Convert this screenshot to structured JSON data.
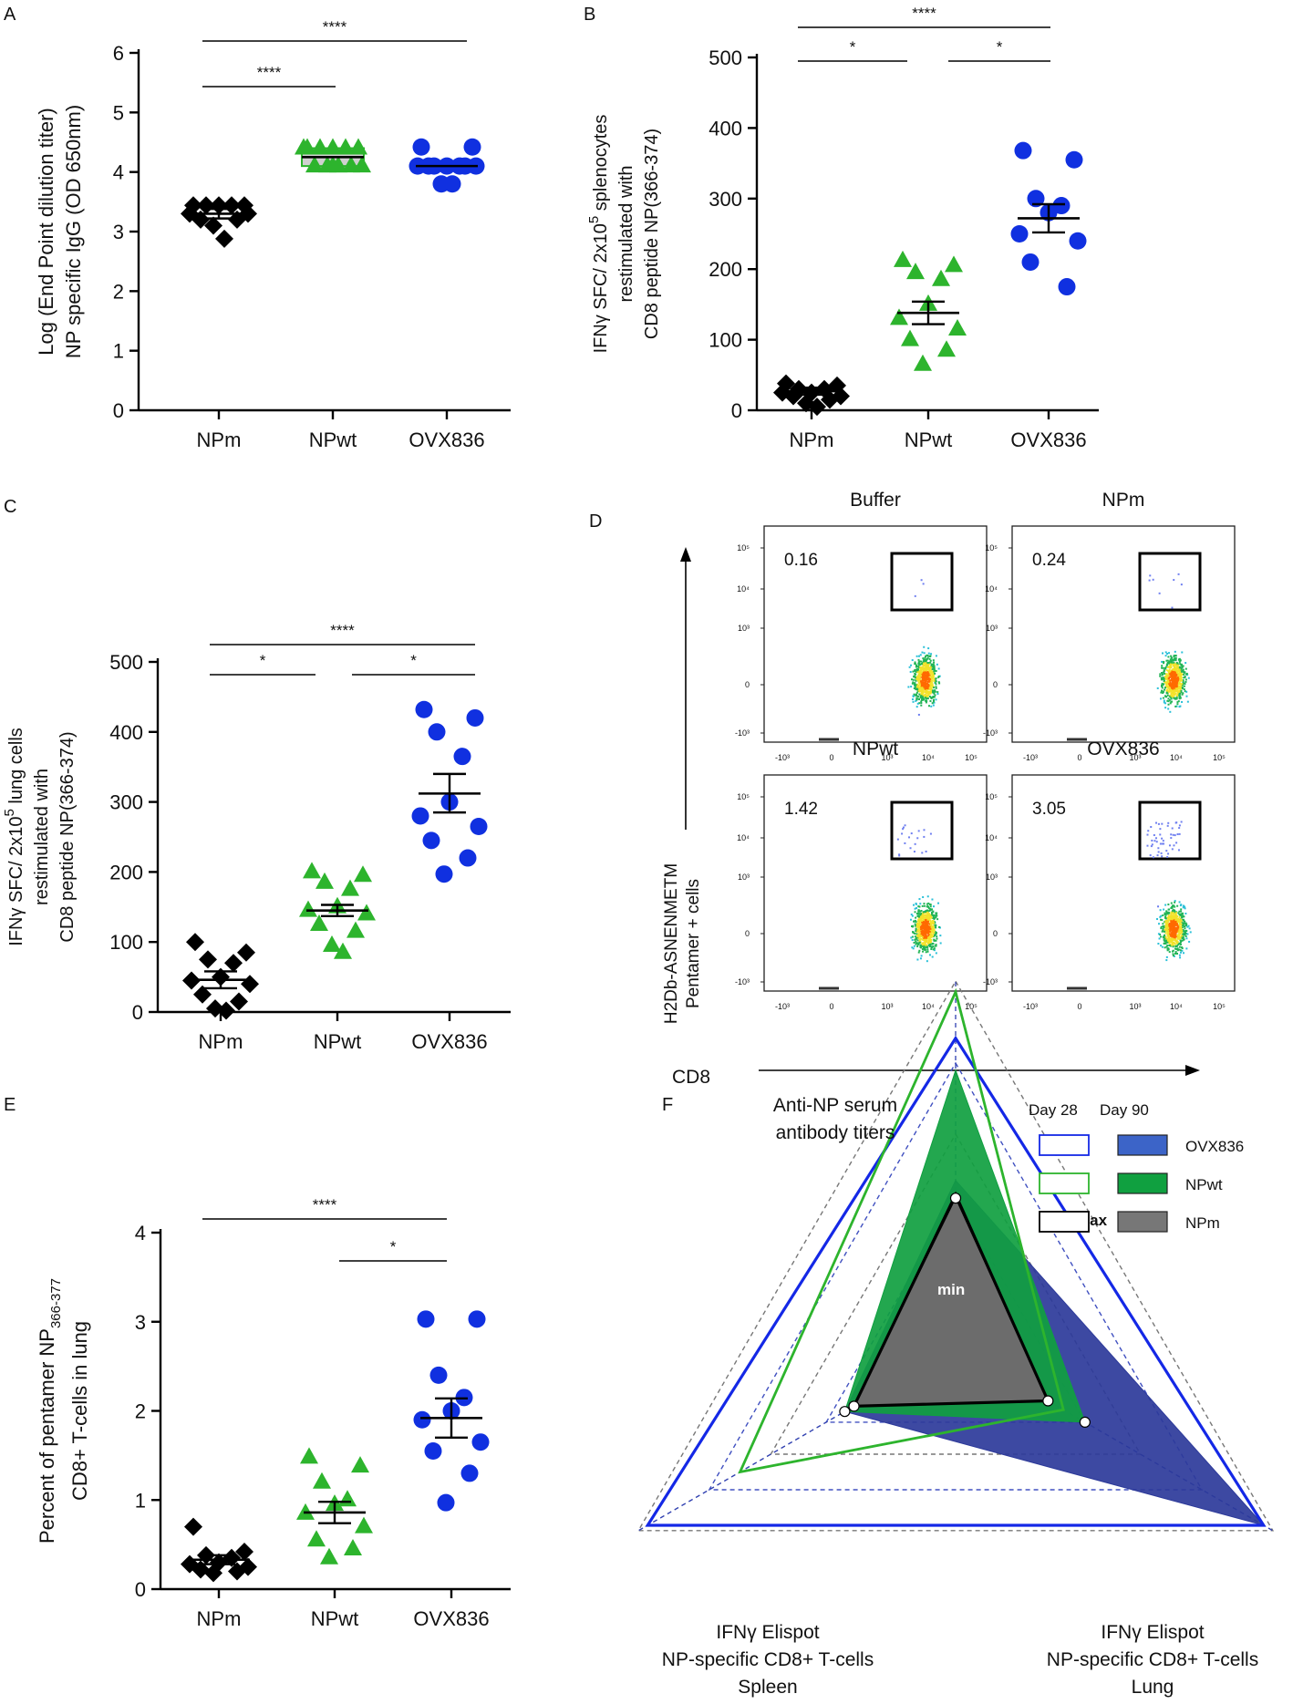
{
  "panels": {
    "A": {
      "letter": "A"
    },
    "B": {
      "letter": "B"
    },
    "C": {
      "letter": "C"
    },
    "D": {
      "letter": "D"
    },
    "E": {
      "letter": "E"
    },
    "F": {
      "letter": "F"
    }
  },
  "colors": {
    "NPm": "#000000",
    "NPwt": "#2db42d",
    "OVX836": "#1030e0",
    "npwt_box_fill": "#d0d0d0"
  },
  "chart_data": [
    {
      "id": "A",
      "type": "scatter",
      "categories": [
        "NPm",
        "NPwt",
        "OVX836"
      ],
      "ylim": [
        0,
        6
      ],
      "yticks": [
        "0",
        "1",
        "2",
        "3",
        "4",
        "5",
        "6"
      ],
      "ylabel": [
        "Log (End Point dilution titer)",
        "NP specific IgG (OD 650nm)"
      ],
      "series": [
        {
          "name": "NPm",
          "points": [
            3.44,
            3.44,
            3.44,
            3.44,
            3.44,
            3.3,
            3.3,
            3.2,
            3.2,
            3.1,
            2.88
          ],
          "mean": 3.3,
          "sem_low": 3.22,
          "sem_high": 3.38
        },
        {
          "name": "NPwt",
          "points": [
            4.4,
            4.4,
            4.4,
            4.4,
            4.4,
            4.4,
            4.1,
            4.1,
            4.1,
            4.1,
            4.1,
            4.1
          ],
          "mean": 4.25,
          "box_low": 4.1,
          "box_high": 4.4
        },
        {
          "name": "OVX836",
          "points": [
            4.42,
            4.42,
            4.1,
            4.1,
            4.1,
            4.1,
            4.1,
            4.1,
            4.1,
            3.8,
            3.8
          ],
          "mean": 4.1
        }
      ],
      "brackets": [
        {
          "from": 0,
          "to": 2,
          "label": "****"
        },
        {
          "from": 0,
          "to": 1,
          "label": "****"
        }
      ]
    },
    {
      "id": "B",
      "type": "scatter",
      "categories": [
        "NPm",
        "NPwt",
        "OVX836"
      ],
      "ylim": [
        0,
        500
      ],
      "yticks": [
        "0",
        "100",
        "200",
        "300",
        "400",
        "500"
      ],
      "ylabel": [
        "IFNγ SFC/ 2x10",
        "5",
        " splenocytes",
        "restimulated with",
        "CD8 peptide NP(366-374)"
      ],
      "series": [
        {
          "name": "NPm",
          "points": [
            38,
            35,
            30,
            30,
            25,
            25,
            20,
            20,
            15,
            10,
            5
          ],
          "mean": 27,
          "sem_low": 22,
          "sem_high": 32
        },
        {
          "name": "NPwt",
          "points": [
            212,
            205,
            195,
            185,
            150,
            130,
            115,
            100,
            85,
            65
          ],
          "mean": 138,
          "sem_low": 122,
          "sem_high": 154
        },
        {
          "name": "OVX836",
          "points": [
            368,
            355,
            300,
            290,
            280,
            250,
            240,
            210,
            175
          ],
          "mean": 272,
          "sem_low": 252,
          "sem_high": 292
        }
      ],
      "brackets": [
        {
          "from": 0,
          "to": 2,
          "label": "****"
        },
        {
          "from": 0,
          "to": 1,
          "label": "*"
        },
        {
          "from": 1,
          "to": 2,
          "label": "*"
        }
      ]
    },
    {
      "id": "C",
      "type": "scatter",
      "categories": [
        "NPm",
        "NPwt",
        "OVX836"
      ],
      "ylim": [
        0,
        500
      ],
      "yticks": [
        "0",
        "100",
        "200",
        "300",
        "400",
        "500"
      ],
      "ylabel": [
        "IFNγ SFC/ 2x10",
        "5",
        " lung cells",
        "restimulated with",
        "CD8 peptide NP(366-374)"
      ],
      "series": [
        {
          "name": "NPm",
          "points": [
            100,
            85,
            75,
            70,
            50,
            45,
            40,
            25,
            15,
            5,
            2
          ],
          "mean": 46,
          "sem_low": 34,
          "sem_high": 58
        },
        {
          "name": "NPwt",
          "points": [
            200,
            195,
            185,
            175,
            150,
            145,
            140,
            125,
            115,
            95,
            85
          ],
          "mean": 145,
          "sem_low": 137,
          "sem_high": 153
        },
        {
          "name": "OVX836",
          "points": [
            432,
            420,
            400,
            365,
            300,
            280,
            265,
            245,
            220,
            197
          ],
          "mean": 312,
          "sem_low": 285,
          "sem_high": 340
        }
      ],
      "brackets": [
        {
          "from": 0,
          "to": 2,
          "label": "****"
        },
        {
          "from": 0,
          "to": 1,
          "label": "*"
        },
        {
          "from": 1,
          "to": 2,
          "label": "*"
        }
      ]
    },
    {
      "id": "D",
      "type": "flow-cytometry",
      "ylabel": [
        "H2Db-ASNENMETM",
        "Pentamer + cells"
      ],
      "xlabel": "CD8",
      "axis_ticks": [
        "-10³",
        "0",
        "10³",
        "10⁴",
        "10⁵"
      ],
      "plots": [
        {
          "title": "Buffer",
          "percent": "0.16"
        },
        {
          "title": "NPm",
          "percent": "0.24"
        },
        {
          "title": "NPwt",
          "percent": "1.42"
        },
        {
          "title": "OVX836",
          "percent": "3.05"
        }
      ]
    },
    {
      "id": "E",
      "type": "scatter",
      "categories": [
        "NPm",
        "NPwt",
        "OVX836"
      ],
      "ylim": [
        0,
        4
      ],
      "yticks": [
        "0",
        "1",
        "2",
        "3",
        "4"
      ],
      "ylabel": [
        "Percent of pentamer NP",
        "366-377",
        "CD8+ T-cells in lung"
      ],
      "series": [
        {
          "name": "NPm",
          "points": [
            0.7,
            0.42,
            0.38,
            0.35,
            0.3,
            0.28,
            0.25,
            0.22,
            0.2,
            0.18
          ],
          "mean": 0.33,
          "sem_low": 0.28,
          "sem_high": 0.38
        },
        {
          "name": "NPwt",
          "points": [
            1.48,
            1.38,
            1.2,
            1.0,
            0.95,
            0.85,
            0.7,
            0.55,
            0.45,
            0.35
          ],
          "mean": 0.86,
          "sem_low": 0.74,
          "sem_high": 0.98
        },
        {
          "name": "OVX836",
          "points": [
            3.03,
            3.03,
            2.4,
            2.15,
            2.0,
            1.9,
            1.65,
            1.55,
            1.3,
            0.97
          ],
          "mean": 1.92,
          "sem_low": 1.7,
          "sem_high": 2.14
        }
      ],
      "brackets": [
        {
          "from": 0,
          "to": 2,
          "label": "****"
        },
        {
          "from": 1,
          "to": 2,
          "label": "*"
        }
      ]
    },
    {
      "id": "F",
      "type": "radar",
      "axes": [
        {
          "label": [
            "Anti-NP serum",
            "antibody titers"
          ]
        },
        {
          "label": [
            "IFNγ  Elispot",
            "NP-specific  CD8+ T-cells",
            "Lung"
          ]
        },
        {
          "label": [
            "IFNγ  Elispot",
            "NP-specific  CD8+ T-cells",
            "Spleen"
          ]
        }
      ],
      "legend": {
        "headers": [
          "Day 28",
          "Day 90"
        ],
        "items": [
          "OVX836",
          "NPwt",
          "NPm"
        ]
      },
      "scale_labels": {
        "max": "max",
        "min": "min"
      },
      "series": [
        {
          "name": "OVX836",
          "day": 28,
          "values": [
            0.87,
            1.0,
            1.0
          ]
        },
        {
          "name": "NPwt",
          "day": 28,
          "values": [
            1.0,
            0.35,
            0.7
          ]
        },
        {
          "name": "NPm",
          "day": 28,
          "values": [
            0.43,
            0.3,
            0.33
          ]
        },
        {
          "name": "OVX836",
          "day": 90,
          "values": [
            0.47,
            1.0,
            0.36
          ]
        },
        {
          "name": "NPwt",
          "day": 90,
          "values": [
            0.78,
            0.42,
            0.36
          ]
        },
        {
          "name": "NPm",
          "day": 90,
          "values": [
            0.42,
            0.3,
            0.33
          ]
        }
      ]
    }
  ]
}
